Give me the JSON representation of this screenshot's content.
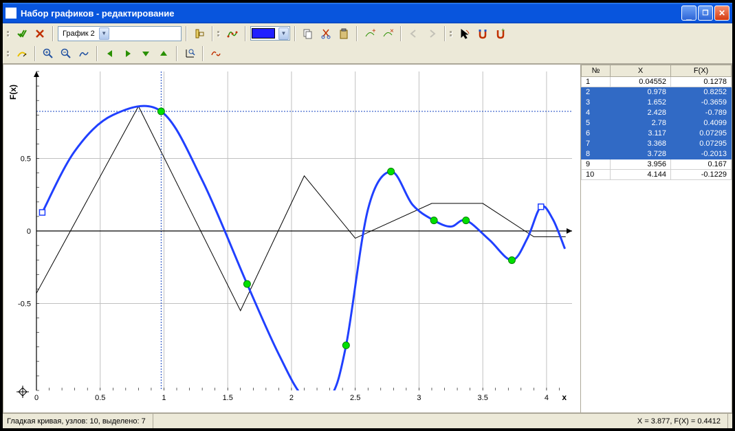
{
  "window": {
    "title": "Набор графиков - редактирование",
    "minimize": "_",
    "maximize": "□",
    "close": "×"
  },
  "toolbar": {
    "graph_selector": "График 2",
    "color_swatch": "#2020ff"
  },
  "chart": {
    "type": "line",
    "xlabel": "x",
    "ylabel": "F(x)",
    "xlim": [
      0,
      4.2
    ],
    "ylim": [
      -1.1,
      1.1
    ],
    "xticks": [
      0,
      0.5,
      1,
      1.5,
      2,
      2.5,
      3,
      3.5,
      4
    ],
    "yticks": [
      -0.5,
      0,
      0.5
    ],
    "grid_color": "#c0c0c0",
    "crosshair_color": "#1040c0",
    "crosshair_y": 0.8252,
    "crosshair_x": 0.978,
    "black_curve": {
      "color": "#000000",
      "stroke_width": 1,
      "points": [
        [
          0,
          -0.43
        ],
        [
          0.8,
          0.86
        ],
        [
          1.6,
          -0.55
        ],
        [
          2.1,
          0.38
        ],
        [
          2.5,
          -0.05
        ],
        [
          3.1,
          0.19
        ],
        [
          3.5,
          0.19
        ],
        [
          3.9,
          -0.04
        ],
        [
          4.15,
          -0.04
        ]
      ]
    },
    "blue_curve": {
      "color": "#2040ff",
      "stroke_width": 3,
      "points": [
        [
          0.046,
          0.128
        ],
        [
          0.3,
          0.55
        ],
        [
          0.6,
          0.8
        ],
        [
          0.978,
          0.825
        ],
        [
          1.3,
          0.35
        ],
        [
          1.652,
          -0.366
        ],
        [
          1.9,
          -0.85
        ],
        [
          2.1,
          -1.15
        ],
        [
          2.3,
          -1.15
        ],
        [
          2.428,
          -0.789
        ],
        [
          2.6,
          0.15
        ],
        [
          2.78,
          0.41
        ],
        [
          2.95,
          0.18
        ],
        [
          3.117,
          0.073
        ],
        [
          3.25,
          0.03
        ],
        [
          3.368,
          0.073
        ],
        [
          3.55,
          -0.06
        ],
        [
          3.728,
          -0.201
        ],
        [
          3.85,
          -0.05
        ],
        [
          3.956,
          0.167
        ],
        [
          4.05,
          0.08
        ],
        [
          4.144,
          -0.123
        ]
      ]
    },
    "green_markers": {
      "color": "#00e000",
      "radius": 5,
      "points": [
        [
          0.978,
          0.8252
        ],
        [
          1.652,
          -0.3659
        ],
        [
          2.428,
          -0.789
        ],
        [
          2.78,
          0.4099
        ],
        [
          3.117,
          0.07295
        ],
        [
          3.368,
          0.07295
        ],
        [
          3.728,
          -0.2013
        ]
      ]
    },
    "open_markers": {
      "color": "#2040ff",
      "points": [
        [
          0.04552,
          0.1278
        ],
        [
          3.956,
          0.167
        ]
      ]
    }
  },
  "table": {
    "columns": [
      "№",
      "X",
      "F(X)"
    ],
    "rows": [
      {
        "n": "1",
        "x": "0.04552",
        "fx": "0.1278",
        "sel": false
      },
      {
        "n": "2",
        "x": "0.978",
        "fx": "0.8252",
        "sel": true
      },
      {
        "n": "3",
        "x": "1.652",
        "fx": "-0.3659",
        "sel": true
      },
      {
        "n": "4",
        "x": "2.428",
        "fx": "-0.789",
        "sel": true
      },
      {
        "n": "5",
        "x": "2.78",
        "fx": "0.4099",
        "sel": true
      },
      {
        "n": "6",
        "x": "3.117",
        "fx": "0.07295",
        "sel": true
      },
      {
        "n": "7",
        "x": "3.368",
        "fx": "0.07295",
        "sel": true
      },
      {
        "n": "8",
        "x": "3.728",
        "fx": "-0.2013",
        "sel": true
      },
      {
        "n": "9",
        "x": "3.956",
        "fx": "0.167",
        "sel": false
      },
      {
        "n": "10",
        "x": "4.144",
        "fx": "-0.1229",
        "sel": false
      }
    ]
  },
  "status": {
    "left": "Гладкая кривая, узлов: 10, выделено: 7",
    "right": "X = 3.877, F(X) = 0.4412"
  }
}
